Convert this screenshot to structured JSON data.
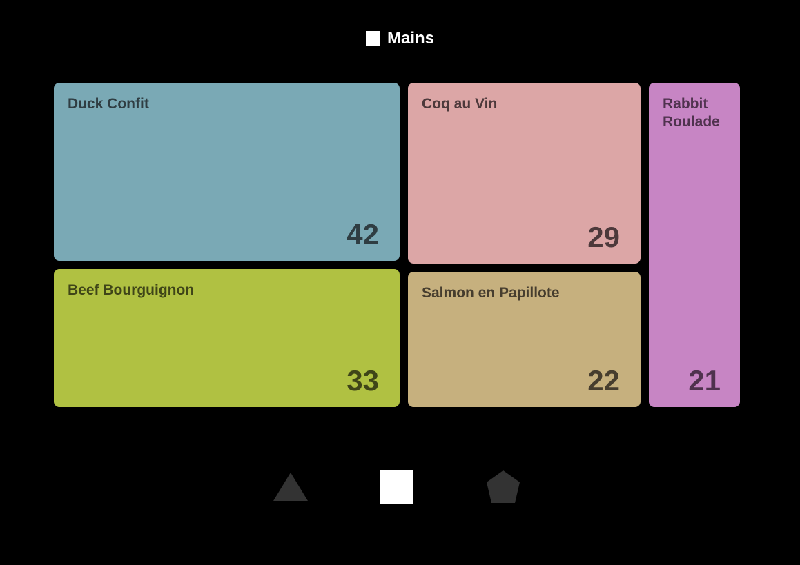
{
  "title": {
    "text": "Mains",
    "icon": "square-icon"
  },
  "chart_data": {
    "type": "treemap",
    "title": "Mains",
    "items": [
      {
        "label": "Duck Confit",
        "value": 42,
        "color": "#7aa9b5",
        "text_color": "#2f3d42"
      },
      {
        "label": "Beef Bourguignon",
        "value": 33,
        "color": "#b0c142",
        "text_color": "#3f4518"
      },
      {
        "label": "Coq au Vin",
        "value": 29,
        "color": "#dca6a6",
        "text_color": "#4d393b"
      },
      {
        "label": "Salmon en Papillote",
        "value": 22,
        "color": "#c6b07e",
        "text_color": "#463d2e"
      },
      {
        "label": "Rabbit Roulade",
        "value": 21,
        "color": "#c785c4",
        "text_color": "#4f324e"
      }
    ]
  },
  "shape_selector": {
    "items": [
      {
        "name": "triangle-icon",
        "active": false
      },
      {
        "name": "square-icon",
        "active": true
      },
      {
        "name": "pentagon-icon",
        "active": false
      }
    ],
    "active_color": "#ffffff",
    "inactive_color": "#333333"
  }
}
